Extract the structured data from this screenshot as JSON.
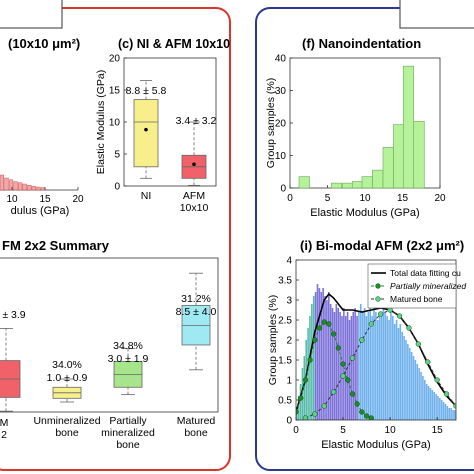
{
  "panels": {
    "left_title": "(10x10 μm²)",
    "c_title": "(c) NI & AFM 10x10",
    "f_title": "(f) Nanoindentation",
    "summary_title": "FM 2x2 Summary",
    "i_title": "(i) Bi-modal AFM (2x2 μm²)"
  },
  "colors": {
    "red_frame": "#d9352d",
    "blue_frame": "#2b3a8f",
    "yellow_box": "#f7ee8c",
    "red_box": "#f0616a",
    "green_box": "#a6e58a",
    "cyan_box": "#9fe9f2",
    "hist_green": "#b6f29a",
    "hist_purple": "#6f62d6",
    "hist_teal": "#45b4a2",
    "hist_blue": "#5fa8ea",
    "fit_dot_green": "#1f8a2a"
  },
  "chart_data": [
    {
      "id": "b_partial",
      "type": "bar",
      "xlabel": "dulus (GPa)",
      "x_ticks": [
        "10",
        "15",
        "20"
      ],
      "note": "partial histogram, clipped at left edge",
      "values": [
        0.25,
        0.2,
        0.17,
        0.14,
        0.12,
        0.1,
        0.08,
        0.06,
        0.05,
        0.04
      ]
    },
    {
      "id": "c",
      "type": "box",
      "title": "(c) NI & AFM 10x10",
      "ylabel": "Elastic Modulus (GPa)",
      "ylim": [
        0,
        20
      ],
      "y_ticks": [
        "0",
        "5",
        "10",
        "15",
        "20"
      ],
      "categories": [
        "NI",
        "AFM\n10x10"
      ],
      "annotations": [
        "8.8 ± 5.8",
        "3.4 ± 3.2"
      ],
      "boxes": [
        {
          "name": "NI",
          "whisker_low": 1.2,
          "q1": 3.0,
          "median": 10.0,
          "q3": 13.5,
          "whisker_high": 16.5,
          "mean": 8.8
        },
        {
          "name": "AFM 10x10",
          "whisker_low": 0.1,
          "q1": 1.2,
          "median": 3.0,
          "q3": 4.8,
          "whisker_high": 10.0,
          "mean": 3.4
        }
      ]
    },
    {
      "id": "f",
      "type": "bar",
      "title": "(f) Nanoindentation",
      "xlabel": "Elastic Modulus (GPa)",
      "ylabel": "Group samples (%)",
      "ylim": [
        0,
        40
      ],
      "xlim": [
        0,
        20
      ],
      "y_ticks": [
        "0",
        "10",
        "20",
        "30",
        "40"
      ],
      "x_ticks": [
        "0",
        "5",
        "10",
        "15",
        "20"
      ],
      "bin_width": 1.4,
      "bin_starts": [
        1.2,
        5.5,
        7.0,
        8.3,
        9.6,
        11.0,
        12.4,
        13.8,
        15.1,
        16.5
      ],
      "values": [
        3.5,
        1.5,
        1.5,
        2.0,
        3.5,
        5.5,
        12.5,
        19.5,
        37.5,
        20.5
      ]
    },
    {
      "id": "summary",
      "type": "box",
      "title": "FM 2x2 Summary",
      "categories": [
        "Unmineralized\nbone",
        "Partially\nmineralized\nbone",
        "Matured\nbone"
      ],
      "annotations": [
        {
          "pct": "",
          "value": "± 3.9"
        },
        {
          "pct": "34.0%",
          "value": "1.0 ± 0.9"
        },
        {
          "pct": "34.8%",
          "value": "3.0 ± 1.9"
        },
        {
          "pct": "31.2%",
          "value": "8.5 ± 4.0"
        }
      ],
      "partial_labels": [
        "M",
        "2"
      ],
      "boxes": [
        {
          "name": "partial",
          "whisker_low": -1,
          "q1": 0.5,
          "median": 2.5,
          "q3": 4.5,
          "whisker_high": 8
        },
        {
          "name": "Unmineralized bone",
          "whisker_low": 0,
          "q1": 0.4,
          "median": 1.0,
          "q3": 1.6,
          "whisker_high": 2.5
        },
        {
          "name": "Partially mineralized bone",
          "whisker_low": 0.8,
          "q1": 1.6,
          "median": 3.0,
          "q3": 4.4,
          "whisker_high": 5.8
        },
        {
          "name": "Matured bone",
          "whisker_low": 3.5,
          "q1": 6.2,
          "median": 8.3,
          "q3": 10.5,
          "whisker_high": 14.0
        }
      ]
    },
    {
      "id": "i",
      "type": "bar",
      "title": "(i) Bi-modal AFM (2x2 μm²)",
      "xlabel": "Elastic Modulus (GPa)",
      "ylabel": "Group samples (%)",
      "xlim": [
        0,
        17
      ],
      "ylim": [
        0,
        4
      ],
      "x_ticks": [
        "0",
        "5",
        "10",
        "15"
      ],
      "y_ticks": [
        "0",
        "0.5",
        "1",
        "1.5",
        "2",
        "2.5",
        "3",
        "3.5",
        "4"
      ],
      "legend": [
        "Total data fitting cu",
        "Partially mineralized",
        "Matured bone"
      ],
      "legend_position": "top-right",
      "series": [
        {
          "name": "Total data fitting cu",
          "type": "line",
          "x": [
            0,
            1,
            2,
            3,
            3.5,
            4,
            5,
            6,
            7,
            8,
            9,
            10,
            11,
            12,
            13,
            14,
            15,
            16,
            17
          ],
          "y": [
            0.2,
            1.0,
            2.2,
            3.0,
            3.15,
            3.05,
            2.75,
            2.75,
            2.7,
            2.75,
            2.8,
            2.75,
            2.6,
            2.3,
            1.9,
            1.4,
            0.95,
            0.6,
            0.35
          ]
        },
        {
          "name": "Partially mineralized",
          "type": "line",
          "x": [
            0,
            0.5,
            1,
            1.5,
            2,
            2.5,
            3,
            3.5,
            4,
            4.5,
            5,
            5.5,
            6,
            6.5,
            7,
            7.5,
            8
          ],
          "y": [
            0.2,
            0.55,
            1.0,
            1.5,
            2.0,
            2.3,
            2.45,
            2.4,
            2.15,
            1.8,
            1.4,
            1.0,
            0.65,
            0.4,
            0.2,
            0.1,
            0.05
          ]
        },
        {
          "name": "Matured bone",
          "type": "line",
          "x": [
            1,
            2,
            3,
            4,
            5,
            6,
            7,
            8,
            9,
            10,
            11,
            12,
            13,
            14,
            15,
            16,
            17
          ],
          "y": [
            0.05,
            0.15,
            0.35,
            0.7,
            1.1,
            1.55,
            2.0,
            2.4,
            2.65,
            2.75,
            2.6,
            2.3,
            1.9,
            1.45,
            1.0,
            0.65,
            0.35
          ]
        }
      ],
      "histogram": {
        "bin_width": 0.2,
        "values": [
          0.3,
          0.6,
          0.9,
          1.3,
          1.6,
          2.0,
          2.3,
          2.6,
          2.9,
          3.1,
          3.2,
          3.4,
          3.3,
          3.2,
          3.3,
          3.1,
          3.0,
          3.2,
          2.9,
          2.8,
          2.7,
          2.9,
          2.8,
          2.7,
          2.6,
          2.8,
          2.6,
          2.7,
          2.5,
          2.6,
          2.7,
          2.8,
          2.6,
          2.7,
          2.9,
          2.7,
          2.8,
          2.6,
          2.7,
          2.8,
          2.6,
          2.8,
          2.7,
          2.5,
          2.7,
          2.6,
          2.8,
          2.7,
          2.6,
          2.5,
          2.7,
          2.6,
          2.4,
          2.5,
          2.3,
          2.4,
          2.2,
          2.1,
          2.0,
          1.9,
          1.8,
          1.7,
          1.6,
          1.5,
          1.4,
          1.3,
          1.2,
          1.1,
          1.0,
          0.9,
          0.85,
          0.8,
          0.75,
          0.7,
          0.65,
          0.6,
          0.55,
          0.5,
          0.45,
          0.4,
          0.35,
          0.3,
          0.3,
          0.25,
          0.25
        ]
      }
    }
  ]
}
